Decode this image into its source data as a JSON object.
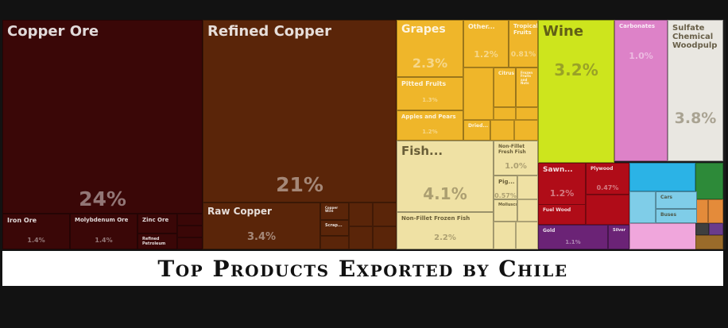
{
  "title": "Top Products Exported by Chile",
  "chart_data": {
    "type": "treemap",
    "unit": "%",
    "tiles": [
      {
        "label": "Copper Ore",
        "value": 24,
        "value_label": "24%",
        "color": "#3a0707"
      },
      {
        "label": "Iron Ore",
        "value": 1.4,
        "value_label": "1.4%",
        "color": "#3a0707"
      },
      {
        "label": "Molybdenum Ore",
        "value": 1.4,
        "value_label": "1.4%",
        "color": "#3a0707"
      },
      {
        "label": "Zinc Ore",
        "value": null,
        "value_label": "",
        "color": "#3a0707"
      },
      {
        "label": "Refined Petroleum",
        "value": null,
        "value_label": "",
        "color": "#3a0707"
      },
      {
        "label": "Refined Copper",
        "value": 21,
        "value_label": "21%",
        "color": "#5a2509"
      },
      {
        "label": "Raw Copper",
        "value": 3.4,
        "value_label": "3.4%",
        "color": "#5a2509"
      },
      {
        "label": "Copper Wire",
        "value": null,
        "value_label": "",
        "color": "#5a2509"
      },
      {
        "label": "Scrap...",
        "value": null,
        "value_label": "",
        "color": "#5a2509"
      },
      {
        "label": "Grapes",
        "value": 2.3,
        "value_label": "2.3%",
        "color": "#efb62a"
      },
      {
        "label": "Other...",
        "value": 1.2,
        "value_label": "1.2%",
        "color": "#efb62a"
      },
      {
        "label": "Tropical Fruits",
        "value": 0.81,
        "value_label": "0.81%",
        "color": "#efb62a"
      },
      {
        "label": "Pitted Fruits",
        "value": 1.3,
        "value_label": "1.3%",
        "color": "#efb62a"
      },
      {
        "label": "Citrus",
        "value": 0.78,
        "value_label": "0.78%",
        "color": "#efb62a"
      },
      {
        "label": "Frozen Fruits and Nuts",
        "value": null,
        "value_label": "",
        "color": "#efb62a"
      },
      {
        "label": "Apples and Pears",
        "value": 1.2,
        "value_label": "1.2%",
        "color": "#efb62a"
      },
      {
        "label": "Dried...",
        "value": null,
        "value_label": "",
        "color": "#efb62a"
      },
      {
        "label": "Fish...",
        "value": 4.1,
        "value_label": "4.1%",
        "color": "#efe1a4"
      },
      {
        "label": "Non-Fillet Fresh Fish",
        "value": 1.0,
        "value_label": "1.0%",
        "color": "#efe1a4"
      },
      {
        "label": "Pig...",
        "value": 0.57,
        "value_label": "0.57%",
        "color": "#efe1a4"
      },
      {
        "label": "Non-Fillet Frozen Fish",
        "value": 2.2,
        "value_label": "2.2%",
        "color": "#efe1a4"
      },
      {
        "label": "Molluscs",
        "value": null,
        "value_label": "",
        "color": "#efe1a4"
      },
      {
        "label": "Wine",
        "value": 3.2,
        "value_label": "3.2%",
        "color": "#cde51d"
      },
      {
        "label": "Carbonates",
        "value": 1.0,
        "value_label": "1.0%",
        "color": "#dd82c8"
      },
      {
        "label": "Sulfate Chemical Woodpulp",
        "value": 3.8,
        "value_label": "3.8%",
        "color": "#e9e7e1"
      },
      {
        "label": "Sawn...",
        "value": 1.2,
        "value_label": "1.2%",
        "color": "#b00c18"
      },
      {
        "label": "Plywood",
        "value": 0.47,
        "value_label": "0.47%",
        "color": "#b00c18"
      },
      {
        "label": "Fuel Wood",
        "value": null,
        "value_label": "",
        "color": "#b00c18"
      },
      {
        "label": "Gold",
        "value": 1.1,
        "value_label": "1.1%",
        "color": "#6b2376"
      },
      {
        "label": "Silver",
        "value": null,
        "value_label": "",
        "color": "#6b2376"
      },
      {
        "label": "Cars",
        "value": null,
        "value_label": "",
        "color": "#7fcde8"
      },
      {
        "label": "Buses",
        "value": null,
        "value_label": "",
        "color": "#7fcde8"
      }
    ]
  }
}
